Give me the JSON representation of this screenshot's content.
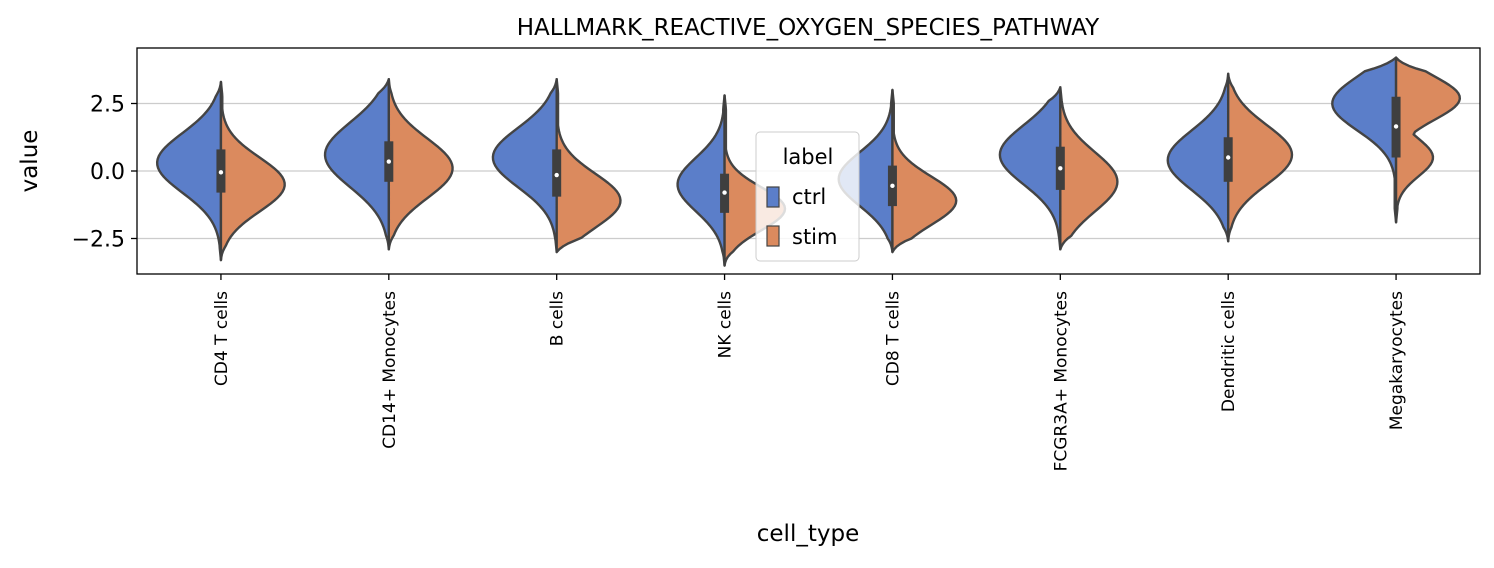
{
  "chart_data": {
    "type": "violin",
    "title": "HALLMARK_REACTIVE_OXYGEN_SPECIES_PATHWAY",
    "xlabel": "cell_type",
    "ylabel": "value",
    "ylim": [
      -3.8,
      4.5
    ],
    "yticks": [
      2.5,
      0.0,
      -2.5
    ],
    "ytick_labels": [
      "2.5",
      "0.0",
      "−2.5"
    ],
    "grid": "horizontal",
    "legend": {
      "title": "label",
      "placement": "center",
      "entries": [
        "ctrl",
        "stim"
      ]
    },
    "colors": {
      "ctrl": "#5b7ec9",
      "stim": "#db8a5e",
      "outline": "#444444",
      "box": "#3f3f3f",
      "grid": "#cccccc"
    },
    "categories": [
      "CD4 T cells",
      "CD14+ Monocytes",
      "B cells",
      "NK cells",
      "CD8 T cells",
      "FCGR3A+ Monocytes",
      "Dendritic cells",
      "Megakaryocytes"
    ],
    "series": [
      {
        "name": "ctrl",
        "violins": [
          {
            "min": -3.3,
            "max": 3.3,
            "peak": 0.3,
            "width": 0.95,
            "spread": 1.1
          },
          {
            "min": -2.9,
            "max": 3.4,
            "peak": 0.6,
            "width": 0.95,
            "spread": 1.2
          },
          {
            "min": -3.0,
            "max": 3.4,
            "peak": 0.5,
            "width": 0.95,
            "spread": 1.1
          },
          {
            "min": -3.5,
            "max": 2.8,
            "peak": -0.5,
            "width": 0.7,
            "spread": 1.0
          },
          {
            "min": -3.0,
            "max": 3.0,
            "peak": -0.3,
            "width": 0.8,
            "spread": 1.0
          },
          {
            "min": -2.9,
            "max": 3.1,
            "peak": 0.6,
            "width": 0.9,
            "spread": 1.1
          },
          {
            "min": -2.6,
            "max": 3.6,
            "peak": 0.4,
            "width": 0.9,
            "spread": 1.1
          },
          {
            "min": -1.9,
            "max": 4.2,
            "peak": 2.5,
            "width": 0.95,
            "spread": 1.0
          }
        ]
      },
      {
        "name": "stim",
        "violins": [
          {
            "min": -3.3,
            "max": 3.3,
            "peak": -0.5,
            "width": 0.95,
            "spread": 1.0
          },
          {
            "min": -2.9,
            "max": 3.4,
            "peak": 0.1,
            "width": 0.95,
            "spread": 1.1
          },
          {
            "min": -3.0,
            "max": 3.4,
            "peak": -1.1,
            "width": 0.95,
            "spread": 1.0
          },
          {
            "min": -3.5,
            "max": 2.8,
            "peak": -1.4,
            "width": 0.9,
            "spread": 0.8
          },
          {
            "min": -3.0,
            "max": 3.0,
            "peak": -1.1,
            "width": 0.95,
            "spread": 0.9
          },
          {
            "min": -2.9,
            "max": 3.1,
            "peak": -0.4,
            "width": 0.85,
            "spread": 1.1
          },
          {
            "min": -2.6,
            "max": 3.6,
            "peak": 0.6,
            "width": 0.95,
            "spread": 1.1
          },
          {
            "min": -1.9,
            "max": 4.2,
            "peak": 2.7,
            "width": 0.95,
            "spread": 0.8,
            "peak2": 0.5,
            "width2": 0.55
          }
        ]
      }
    ],
    "box": [
      {
        "q1": -0.8,
        "q3": 0.8,
        "median": -0.05
      },
      {
        "q1": -0.4,
        "q3": 1.1,
        "median": 0.35
      },
      {
        "q1": -0.95,
        "q3": 0.8,
        "median": -0.15
      },
      {
        "q1": -1.55,
        "q3": -0.1,
        "median": -0.8
      },
      {
        "q1": -1.3,
        "q3": 0.2,
        "median": -0.55
      },
      {
        "q1": -0.7,
        "q3": 0.9,
        "median": 0.1
      },
      {
        "q1": -0.4,
        "q3": 1.25,
        "median": 0.5
      },
      {
        "q1": 0.5,
        "q3": 2.75,
        "median": 1.65
      }
    ]
  }
}
